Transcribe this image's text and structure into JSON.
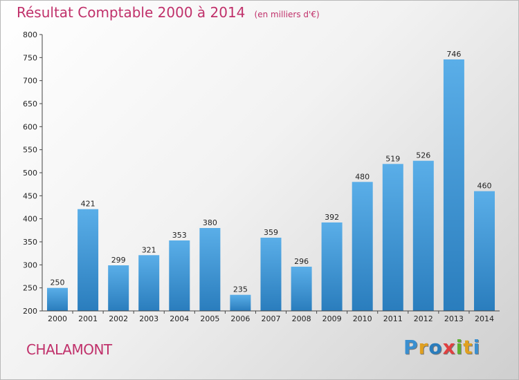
{
  "chart_data": {
    "type": "bar",
    "title": "Résultat Comptable 2000 à 2014",
    "subtitle": "(en milliers d'€)",
    "categories": [
      "2000",
      "2001",
      "2002",
      "2003",
      "2004",
      "2005",
      "2006",
      "2007",
      "2008",
      "2009",
      "2010",
      "2011",
      "2012",
      "2013",
      "2014"
    ],
    "values": [
      250,
      421,
      299,
      321,
      353,
      380,
      235,
      359,
      296,
      392,
      480,
      519,
      526,
      746,
      460
    ],
    "ylim": [
      200,
      800
    ],
    "yticks": [
      200,
      250,
      300,
      350,
      400,
      450,
      500,
      550,
      600,
      650,
      700,
      750,
      800
    ],
    "grid": false,
    "bar_color_top": "#5aaee8",
    "bar_color_bottom": "#2a7dbd"
  },
  "footer": {
    "commune": "CHALAMONT",
    "logo_text": "Proxiti",
    "logo_colors": [
      "#3a8fd0",
      "#e0a020",
      "#2a7dbd",
      "#e04040",
      "#60b030",
      "#e0a020",
      "#3a8fd0"
    ]
  },
  "colors": {
    "title": "#c0306a",
    "axis": "#444444"
  }
}
